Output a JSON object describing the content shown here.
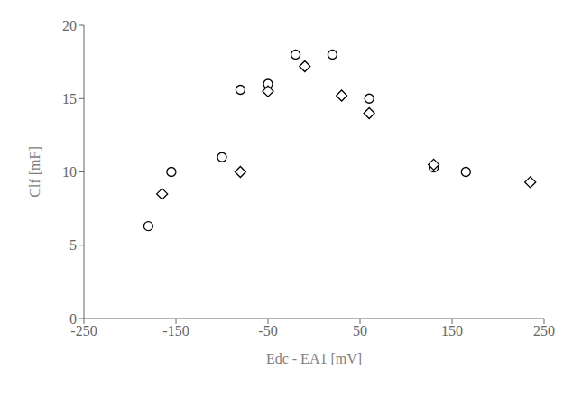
{
  "chart_data": {
    "type": "scatter",
    "xlabel": "Edc - EA1 [mV]",
    "ylabel": "Clf [mF]",
    "xlim": [
      -250,
      250
    ],
    "ylim": [
      0,
      20
    ],
    "xticks": [
      -250,
      -150,
      -50,
      50,
      150,
      250
    ],
    "yticks": [
      0,
      5,
      10,
      15,
      20
    ],
    "grid": false,
    "series": [
      {
        "marker": "circle",
        "color": "#000000",
        "x": [
          -180,
          -155,
          -100,
          -80,
          -50,
          -20,
          20,
          60,
          130,
          165
        ],
        "values": [
          6.3,
          10.0,
          11.0,
          15.6,
          16.0,
          18.0,
          18.0,
          15.0,
          10.3,
          10.0
        ]
      },
      {
        "marker": "diamond",
        "color": "#000000",
        "x": [
          -165,
          -80,
          -50,
          -10,
          30,
          60,
          130,
          235
        ],
        "values": [
          8.5,
          10.0,
          15.5,
          17.2,
          15.2,
          14.0,
          10.5,
          9.3
        ]
      }
    ]
  }
}
